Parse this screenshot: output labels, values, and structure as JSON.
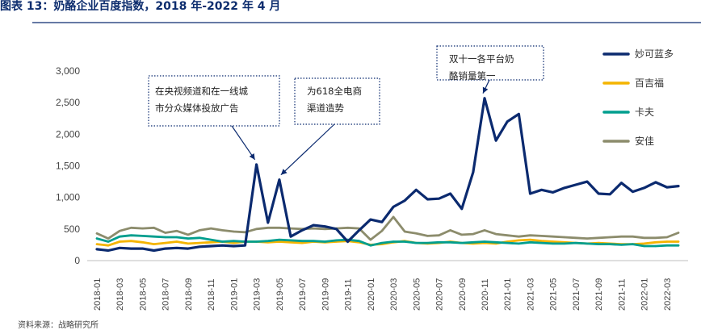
{
  "figure": {
    "title": "图表 13：奶酪企业百度指数，2018 年-2022 年 4 月",
    "source": "资料来源：战略研究所"
  },
  "chart_data": {
    "type": "line",
    "title": "图表 13：奶酪企业百度指数，2018 年-2022 年 4 月",
    "xlabel": "",
    "ylabel": "",
    "ylim": [
      0,
      3000
    ],
    "yticks": [
      0,
      500,
      1000,
      1500,
      2000,
      2500,
      3000
    ],
    "ytick_labels": [
      "0",
      "500",
      "1,000",
      "1,500",
      "2,000",
      "2,500",
      "3,000"
    ],
    "xtick_labels": [
      "2018-01",
      "2018-03",
      "2018-05",
      "2018-07",
      "2018-09",
      "2018-11",
      "2019-01",
      "2019-03",
      "2019-05",
      "2019-07",
      "2019-09",
      "2019-11",
      "2020-01",
      "2020-03",
      "2020-05",
      "2020-07",
      "2020-09",
      "2020-11",
      "2021-01",
      "2021-03",
      "2021-05",
      "2021-07",
      "2021-09",
      "2021-11",
      "2022-01",
      "2022-03"
    ],
    "months": [
      "2018-01",
      "2018-02",
      "2018-03",
      "2018-04",
      "2018-05",
      "2018-06",
      "2018-07",
      "2018-08",
      "2018-09",
      "2018-10",
      "2018-11",
      "2018-12",
      "2019-01",
      "2019-02",
      "2019-03",
      "2019-04",
      "2019-05",
      "2019-06",
      "2019-07",
      "2019-08",
      "2019-09",
      "2019-10",
      "2019-11",
      "2019-12",
      "2020-01",
      "2020-02",
      "2020-03",
      "2020-04",
      "2020-05",
      "2020-06",
      "2020-07",
      "2020-08",
      "2020-09",
      "2020-10",
      "2020-11",
      "2020-12",
      "2021-01",
      "2021-02",
      "2021-03",
      "2021-04",
      "2021-05",
      "2021-06",
      "2021-07",
      "2021-08",
      "2021-09",
      "2021-10",
      "2021-11",
      "2021-12",
      "2022-01",
      "2022-02",
      "2022-03",
      "2022-04"
    ],
    "grid": false,
    "legend_position": "right",
    "series": [
      {
        "name": "妙可蓝多",
        "color": "#0b2a6f",
        "values": [
          180,
          160,
          200,
          190,
          190,
          160,
          190,
          200,
          190,
          220,
          230,
          240,
          230,
          240,
          1520,
          600,
          1280,
          380,
          480,
          560,
          540,
          500,
          300,
          480,
          650,
          610,
          850,
          950,
          1120,
          970,
          980,
          1060,
          820,
          1400,
          2570,
          1900,
          2200,
          2320,
          1060,
          1120,
          1080,
          1150,
          1200,
          1250,
          1060,
          1050,
          1230,
          1090,
          1150,
          1240,
          1160,
          1180
        ]
      },
      {
        "name": "百吉福",
        "color": "#f4b400",
        "values": [
          260,
          240,
          300,
          310,
          290,
          260,
          280,
          300,
          270,
          280,
          290,
          300,
          280,
          300,
          300,
          290,
          300,
          290,
          280,
          300,
          290,
          300,
          310,
          290,
          250,
          260,
          290,
          310,
          280,
          270,
          280,
          300,
          280,
          270,
          280,
          270,
          300,
          320,
          330,
          310,
          300,
          290,
          280,
          270,
          280,
          270,
          260,
          260,
          270,
          290,
          300,
          300
        ]
      },
      {
        "name": "卡夫",
        "color": "#009e8e",
        "values": [
          350,
          300,
          380,
          400,
          390,
          380,
          370,
          370,
          350,
          360,
          330,
          300,
          310,
          300,
          300,
          310,
          330,
          320,
          310,
          310,
          300,
          320,
          330,
          310,
          240,
          280,
          300,
          300,
          280,
          280,
          290,
          290,
          280,
          290,
          300,
          290,
          280,
          270,
          290,
          280,
          270,
          270,
          280,
          270,
          260,
          260,
          250,
          260,
          230,
          230,
          240,
          240
        ]
      },
      {
        "name": "安佳",
        "color": "#8c8c6c",
        "values": [
          430,
          350,
          470,
          520,
          510,
          520,
          440,
          470,
          410,
          480,
          510,
          480,
          460,
          450,
          500,
          520,
          520,
          510,
          500,
          510,
          500,
          510,
          520,
          510,
          330,
          470,
          690,
          460,
          430,
          390,
          400,
          480,
          410,
          420,
          480,
          420,
          400,
          380,
          400,
          390,
          380,
          370,
          360,
          350,
          360,
          370,
          380,
          380,
          360,
          360,
          370,
          440
        ]
      }
    ],
    "annotations": [
      {
        "id": "cctv",
        "lines": [
          "在央视频道和在一线城",
          "市分众媒体投放广告"
        ],
        "target": "2019-03"
      },
      {
        "id": "e618",
        "lines": [
          "为618全电商",
          "渠道造势"
        ],
        "target": "2019-05"
      },
      {
        "id": "d11",
        "lines": [
          "双十一各平台奶",
          "酪销量第一"
        ],
        "target": "2020-11"
      }
    ]
  }
}
